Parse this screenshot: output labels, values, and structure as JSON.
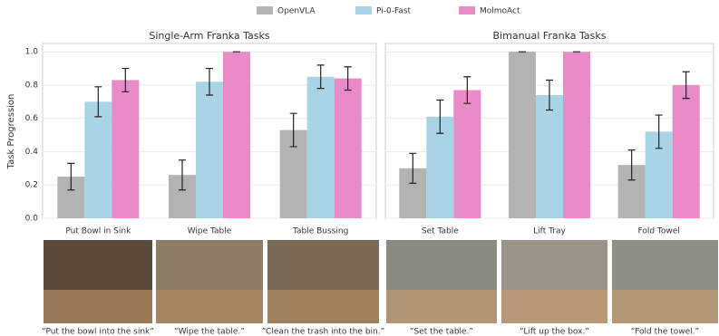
{
  "chart_data": [
    {
      "type": "bar",
      "title": "Single-Arm Franka Tasks",
      "y_label": "Task Progression",
      "categories": [
        "Put Bowl in Sink",
        "Wipe Table",
        "Table Bussing"
      ],
      "series": [
        {
          "name": "OpenVLA",
          "color": "#b3b3b3",
          "values": [
            0.25,
            0.26,
            0.53
          ],
          "errors": [
            0.08,
            0.09,
            0.1
          ]
        },
        {
          "name": "Pi-0-Fast",
          "color": "#a9d4e6",
          "values": [
            0.7,
            0.82,
            0.85
          ],
          "errors": [
            0.09,
            0.08,
            0.07
          ]
        },
        {
          "name": "MolmoAct",
          "color": "#e98bc9",
          "values": [
            0.83,
            1.0,
            0.84
          ],
          "errors": [
            0.07,
            0,
            0.07
          ]
        }
      ],
      "ylim": [
        0,
        1.05
      ],
      "yticks": [
        {
          "value": 0,
          "label": "0.0"
        },
        0.2,
        0.4,
        0.6,
        0.8,
        {
          "value": 1,
          "label": "1.0"
        }
      ],
      "grid": true
    },
    {
      "type": "bar",
      "title": "Bimanual Franka Tasks",
      "categories": [
        "Set Table",
        "Lift Tray",
        "Fold Towel"
      ],
      "series": [
        {
          "name": "OpenVLA",
          "color": "#b3b3b3",
          "values": [
            0.3,
            1.0,
            0.32
          ],
          "errors": [
            0.09,
            0,
            0.09
          ]
        },
        {
          "name": "Pi-0-Fast",
          "color": "#a9d4e6",
          "values": [
            0.61,
            0.74,
            0.52
          ],
          "errors": [
            0.1,
            0.09,
            0.1
          ]
        },
        {
          "name": "MolmoAct",
          "color": "#e98bc9",
          "values": [
            0.77,
            1.0,
            0.8
          ],
          "errors": [
            0.08,
            0,
            0.08
          ]
        }
      ],
      "ylim": [
        0,
        1.05
      ],
      "yticks": [
        0,
        0.2,
        0.4,
        0.6,
        0.8,
        1
      ],
      "grid": true
    }
  ],
  "images": [
    {
      "caption": "“Put the bowl into the sink”"
    },
    {
      "caption": "“Wipe the table.”"
    },
    {
      "caption": "“Clean the trash into the bin.”"
    },
    {
      "caption": "“Set the table.”"
    },
    {
      "caption": "“Lift up the box.”"
    },
    {
      "caption": "“Fold the towel.”"
    }
  ]
}
